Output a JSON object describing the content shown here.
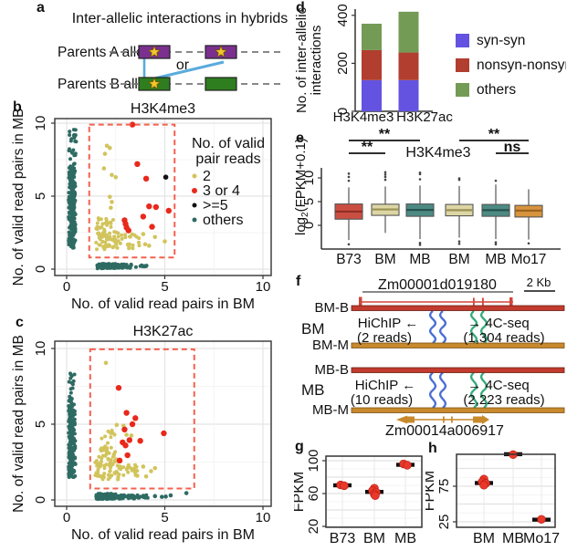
{
  "panels": {
    "a": {
      "label": "a",
      "title": "Inter-allelic interactions in hybrids",
      "row_a": "Parents A allele",
      "row_b": "Parents B allele",
      "or_label": "or",
      "colors": {
        "box_a": "#7b2f8f",
        "box_b": "#2e7d1f",
        "star": "#f5c42c",
        "link": "#5aabdd",
        "dash": "#777777"
      }
    },
    "b": {
      "label": "b"
    },
    "c": {
      "label": "c"
    },
    "d": {
      "label": "d"
    },
    "e": {
      "label": "e"
    },
    "f": {
      "label": "f",
      "gene_top": "Zm00001d019180",
      "scale_label": "2 Kb",
      "gene_bottom": "Zm00014a006917",
      "groups": [
        {
          "name": "BM",
          "top_track": "BM-B",
          "bottom_track": "BM-M",
          "hichip": "HiChIP ←",
          "hichip_reads": "(2 reads)",
          "fourc": "→ 4C-seq",
          "fourc_reads": "(1,304 reads)"
        },
        {
          "name": "MB",
          "top_track": "MB-B",
          "bottom_track": "MB-M",
          "hichip": "HiChIP ←",
          "hichip_reads": "(10 reads)",
          "fourc": "→ 4C-seq",
          "fourc_reads": "(2,223 reads)"
        }
      ],
      "colors": {
        "b_track": "#c23b2e",
        "m_track": "#c8892d",
        "gene_top": "#d1453a",
        "gene_bottom": "#c8892d",
        "hichip_curve": "#4a6fd4",
        "fourc_curve": "#35ab7d"
      }
    },
    "g": {
      "label": "g"
    },
    "h": {
      "label": "h"
    }
  },
  "chart_data": [
    {
      "id": "b",
      "type": "scatter",
      "title": "H3K4me3",
      "xlabel": "No. of valid read pairs in BM",
      "ylabel": "No. of valid read pairs in MB",
      "xticks": [
        0,
        5,
        10
      ],
      "yticks": [
        0,
        5,
        10
      ],
      "xlim": [
        -0.6,
        10.5
      ],
      "ylim": [
        -0.5,
        10.4
      ],
      "grid": true,
      "highlight_box": {
        "x0": 1.15,
        "x1": 5.5,
        "y0": 0.8,
        "y1": 9.9,
        "color": "#f4604f"
      },
      "legend": {
        "title_lines": [
          "No. of valid",
          "pair reads"
        ],
        "items": [
          {
            "label": "2",
            "color": "#d2c45c"
          },
          {
            "label": "3 or 4",
            "color": "#e8291b"
          },
          {
            "label": ">=5",
            "color": "#111111"
          },
          {
            "label": "others",
            "color": "#2e6b63"
          }
        ]
      },
      "point_colors": {
        "y": "#d2c45c",
        "r": "#e8291b",
        "k": "#111111",
        "t": "#2e6b63"
      },
      "clusters": [
        {
          "x0": 0.1,
          "x1": 0.45,
          "y0": 1.45,
          "y1": 5.2,
          "n": 150,
          "seed": 11,
          "c": "t"
        },
        {
          "x0": 0.1,
          "x1": 0.45,
          "y0": 5.2,
          "y1": 7.1,
          "n": 60,
          "seed": 21,
          "c": "t"
        },
        {
          "x0": 0.12,
          "x1": 0.5,
          "y0": 7.1,
          "y1": 9.6,
          "n": 26,
          "seed": 31,
          "c": "t"
        },
        {
          "x0": 1.55,
          "x1": 2.55,
          "y0": 0.05,
          "y1": 0.38,
          "n": 110,
          "seed": 41,
          "c": "t"
        },
        {
          "x0": 2.55,
          "x1": 3.35,
          "y0": 0.07,
          "y1": 0.33,
          "n": 40,
          "seed": 51,
          "c": "t"
        },
        {
          "x0": 3.5,
          "x1": 4.15,
          "y0": 0.1,
          "y1": 0.3,
          "n": 10,
          "seed": 61,
          "c": "t"
        },
        {
          "x0": 1.45,
          "x1": 2.7,
          "y0": 1.35,
          "y1": 2.6,
          "n": 55,
          "seed": 71,
          "c": "y"
        },
        {
          "x0": 1.5,
          "x1": 2.4,
          "y0": 2.6,
          "y1": 3.5,
          "n": 22,
          "seed": 81,
          "c": "y"
        },
        {
          "x0": 2.7,
          "x1": 3.7,
          "y0": 1.4,
          "y1": 2.4,
          "n": 20,
          "seed": 91,
          "c": "y"
        }
      ],
      "points": [
        {
          "x": 2.05,
          "y": 8.45,
          "c": "y"
        },
        {
          "x": 2.2,
          "y": 8.3,
          "c": "y"
        },
        {
          "x": 1.95,
          "y": 7.9,
          "c": "y"
        },
        {
          "x": 1.9,
          "y": 6.9,
          "c": "y"
        },
        {
          "x": 2.3,
          "y": 6.45,
          "c": "y"
        },
        {
          "x": 2.5,
          "y": 6.3,
          "c": "y"
        },
        {
          "x": 2.2,
          "y": 4.95,
          "c": "y"
        },
        {
          "x": 2.3,
          "y": 4.6,
          "c": "y"
        },
        {
          "x": 2.25,
          "y": 4.2,
          "c": "y"
        },
        {
          "x": 3.05,
          "y": 3.0,
          "c": "y"
        },
        {
          "x": 4.0,
          "y": 1.7,
          "c": "y"
        },
        {
          "x": 4.5,
          "y": 2.2,
          "c": "y"
        },
        {
          "x": 5.0,
          "y": 1.9,
          "c": "y"
        },
        {
          "x": 3.9,
          "y": 2.4,
          "c": "y"
        },
        {
          "x": 4.2,
          "y": 1.6,
          "c": "y"
        },
        {
          "x": 3.35,
          "y": 9.9,
          "c": "r"
        },
        {
          "x": 3.6,
          "y": 7.2,
          "c": "r"
        },
        {
          "x": 4.05,
          "y": 6.2,
          "c": "r"
        },
        {
          "x": 4.2,
          "y": 4.3,
          "c": "r"
        },
        {
          "x": 4.55,
          "y": 4.25,
          "c": "r"
        },
        {
          "x": 5.2,
          "y": 4.0,
          "c": "r"
        },
        {
          "x": 3.9,
          "y": 3.6,
          "c": "r"
        },
        {
          "x": 4.35,
          "y": 2.9,
          "c": "r"
        },
        {
          "x": 2.95,
          "y": 3.35,
          "c": "r"
        },
        {
          "x": 3.0,
          "y": 3.1,
          "c": "r"
        },
        {
          "x": 3.05,
          "y": 2.85,
          "c": "r"
        },
        {
          "x": 3.15,
          "y": 2.65,
          "c": "r"
        },
        {
          "x": 5.05,
          "y": 6.3,
          "c": "k"
        }
      ]
    },
    {
      "id": "c",
      "type": "scatter",
      "title": "H3K27ac",
      "xlabel": "No. of valid read pairs in BM",
      "ylabel": "No. of valid read pairs in MB",
      "xticks": [
        0,
        5,
        10
      ],
      "yticks": [
        0,
        5,
        10
      ],
      "xlim": [
        -0.6,
        10.5
      ],
      "ylim": [
        -0.5,
        10.4
      ],
      "grid": true,
      "highlight_box": {
        "x0": 1.2,
        "x1": 6.5,
        "y0": 0.75,
        "y1": 9.95,
        "color": "#f4604f"
      },
      "point_colors": {
        "y": "#d2c45c",
        "r": "#e8291b",
        "k": "#111111",
        "t": "#2e6b63"
      },
      "clusters": [
        {
          "x0": 0.1,
          "x1": 0.45,
          "y0": 1.5,
          "y1": 5.1,
          "n": 150,
          "seed": 12,
          "c": "t"
        },
        {
          "x0": 0.1,
          "x1": 0.45,
          "y0": 5.1,
          "y1": 6.9,
          "n": 45,
          "seed": 22,
          "c": "t"
        },
        {
          "x0": 0.12,
          "x1": 0.48,
          "y0": 6.9,
          "y1": 8.5,
          "n": 12,
          "seed": 32,
          "c": "t"
        },
        {
          "x0": 1.5,
          "x1": 2.5,
          "y0": 0.05,
          "y1": 0.42,
          "n": 110,
          "seed": 42,
          "c": "t"
        },
        {
          "x0": 2.5,
          "x1": 3.45,
          "y0": 0.08,
          "y1": 0.35,
          "n": 45,
          "seed": 52,
          "c": "t"
        },
        {
          "x0": 3.45,
          "x1": 4.2,
          "y0": 0.1,
          "y1": 0.32,
          "n": 12,
          "seed": 62,
          "c": "t"
        },
        {
          "x0": 1.45,
          "x1": 2.65,
          "y0": 1.35,
          "y1": 2.7,
          "n": 60,
          "seed": 72,
          "c": "y"
        },
        {
          "x0": 1.55,
          "x1": 2.5,
          "y0": 2.7,
          "y1": 3.6,
          "n": 25,
          "seed": 82,
          "c": "y"
        },
        {
          "x0": 2.65,
          "x1": 3.6,
          "y0": 1.45,
          "y1": 2.35,
          "n": 22,
          "seed": 92,
          "c": "y"
        },
        {
          "x0": 1.7,
          "x1": 2.5,
          "y0": 3.6,
          "y1": 4.6,
          "n": 10,
          "seed": 102,
          "c": "y"
        }
      ],
      "points": [
        {
          "x": 2.0,
          "y": 9.05,
          "c": "y"
        },
        {
          "x": 2.55,
          "y": 4.95,
          "c": "y"
        },
        {
          "x": 2.9,
          "y": 4.9,
          "c": "y"
        },
        {
          "x": 3.05,
          "y": 4.3,
          "c": "y"
        },
        {
          "x": 3.3,
          "y": 4.25,
          "c": "y"
        },
        {
          "x": 3.9,
          "y": 2.2,
          "c": "y"
        },
        {
          "x": 4.3,
          "y": 1.9,
          "c": "y"
        },
        {
          "x": 3.6,
          "y": 1.6,
          "c": "y"
        },
        {
          "x": 4.05,
          "y": 1.55,
          "c": "y"
        },
        {
          "x": 4.5,
          "y": 2.1,
          "c": "y"
        },
        {
          "x": 2.65,
          "y": 7.4,
          "c": "r"
        },
        {
          "x": 3.05,
          "y": 5.75,
          "c": "r"
        },
        {
          "x": 3.5,
          "y": 5.4,
          "c": "r"
        },
        {
          "x": 3.35,
          "y": 5.0,
          "c": "r"
        },
        {
          "x": 4.95,
          "y": 4.4,
          "c": "r"
        },
        {
          "x": 2.95,
          "y": 4.65,
          "c": "r"
        },
        {
          "x": 3.2,
          "y": 3.95,
          "c": "r"
        },
        {
          "x": 3.75,
          "y": 3.9,
          "c": "r"
        },
        {
          "x": 2.85,
          "y": 3.8,
          "c": "r"
        },
        {
          "x": 3.0,
          "y": 3.6,
          "c": "r"
        },
        {
          "x": 3.1,
          "y": 2.95,
          "c": "r"
        },
        {
          "x": 2.7,
          "y": 2.6,
          "c": "r"
        },
        {
          "x": 4.5,
          "y": 0.25,
          "c": "t"
        },
        {
          "x": 4.85,
          "y": 0.2,
          "c": "t"
        },
        {
          "x": 5.3,
          "y": 0.3,
          "c": "t"
        },
        {
          "x": 6.1,
          "y": 0.45,
          "c": "t"
        },
        {
          "x": 5.05,
          "y": 0.22,
          "c": "t"
        }
      ]
    },
    {
      "id": "d",
      "type": "stacked_bar",
      "categories": [
        "H3K4me3",
        "H3K27ac"
      ],
      "series": [
        {
          "name": "syn-syn",
          "color": "#6353e0",
          "values": [
            130,
            130
          ]
        },
        {
          "name": "nonsyn-nonsyn",
          "color": "#b23e2f",
          "values": [
            125,
            115
          ]
        },
        {
          "name": "others",
          "color": "#749b55",
          "values": [
            110,
            170
          ]
        }
      ],
      "ylabel_lines": [
        "No. of inter-allelic",
        "interactions"
      ],
      "yticks": [
        0,
        200,
        400
      ],
      "ylim": [
        0,
        430
      ]
    },
    {
      "id": "e",
      "type": "box",
      "title": "H3K4me3",
      "ylabel_pre": "log",
      "ylabel_sub": "2",
      "ylabel_post": "(FPKM+0.1)",
      "yticks": [
        0,
        5,
        10
      ],
      "groups": [
        {
          "label": "B73",
          "color": "#cb4e42",
          "med_color": "#8f2f26",
          "lo": -3.1,
          "q1": 1.3,
          "med": 2.9,
          "q3": 4.5,
          "hi": 8.0,
          "out": [
            9.4,
            10.2,
            10.9,
            -4.0
          ]
        },
        {
          "label": "BM",
          "color": "#ddd6a4",
          "med_color": "#9a9156",
          "lo": -1.6,
          "q1": 2.1,
          "med": 3.35,
          "q3": 4.45,
          "hi": 8.2,
          "out": [
            9.6,
            10.2,
            10.7,
            11.2
          ]
        },
        {
          "label": "MB",
          "color": "#4d8a84",
          "med_color": "#27524d",
          "lo": -2.9,
          "q1": 1.9,
          "med": 3.25,
          "q3": 4.5,
          "hi": 8.4,
          "out": [
            9.7,
            10.8,
            11.1,
            -3.7,
            -4.1
          ]
        },
        {
          "label": "BM",
          "color": "#ddd6a4",
          "med_color": "#9a9156",
          "lo": -2.6,
          "q1": 2.0,
          "med": 3.2,
          "q3": 4.4,
          "hi": 8.3,
          "out": [
            9.6,
            9.9,
            -3.4,
            -3.9
          ]
        },
        {
          "label": "MB",
          "color": "#4d8a84",
          "med_color": "#27524d",
          "lo": -2.9,
          "q1": 1.9,
          "med": 3.2,
          "q3": 4.4,
          "hi": 8.6,
          "out": [
            9.4,
            -3.6,
            -4.0
          ]
        },
        {
          "label": "Mo17",
          "color": "#d8943c",
          "med_color": "#9c6420",
          "lo": -3.0,
          "q1": 1.75,
          "med": 3.1,
          "q3": 4.2,
          "hi": 7.6,
          "out": [
            -3.8
          ]
        }
      ],
      "significance": [
        {
          "from": 0,
          "to": 1,
          "label": "**",
          "level": 0
        },
        {
          "from": 0,
          "to": 2,
          "label": "**",
          "level": 1
        },
        {
          "from": 3,
          "to": 5,
          "label": "**",
          "level": 1
        },
        {
          "from": 4,
          "to": 5,
          "label": "ns",
          "level": 0
        }
      ]
    },
    {
      "id": "g",
      "type": "strip",
      "ylabel": "FPKM",
      "yticks": [
        20,
        60,
        100
      ],
      "ylim": [
        15,
        105
      ],
      "groups": [
        {
          "label": "B73",
          "mean": 70,
          "dots": [
            [
              -1,
              70.5
            ],
            [
              1,
              69.5
            ]
          ]
        },
        {
          "label": "BM",
          "mean": 62,
          "dots": [
            [
              0,
              66.5
            ],
            [
              -1,
              63.5
            ],
            [
              1,
              61.5
            ],
            [
              0,
              59
            ],
            [
              0.5,
              57.5
            ]
          ]
        },
        {
          "label": "MB",
          "mean": 95,
          "dots": [
            [
              -1,
              96
            ],
            [
              1,
              94.5
            ]
          ]
        }
      ]
    },
    {
      "id": "h",
      "type": "strip",
      "ylabel": "FPKM",
      "yticks": [
        25,
        75
      ],
      "ylim": [
        20,
        125
      ],
      "groups": [
        {
          "label": "BM",
          "mean": 79.5,
          "dots": [
            [
              0,
              85
            ],
            [
              -1,
              81
            ],
            [
              1,
              79
            ],
            [
              0,
              76.5
            ]
          ]
        },
        {
          "label": "MB",
          "mean": 120,
          "dots": [
            [
              0,
              119.5
            ]
          ]
        },
        {
          "label": "Mo17",
          "mean": 28,
          "dots": [
            [
              0,
              28.5
            ]
          ]
        }
      ]
    }
  ]
}
